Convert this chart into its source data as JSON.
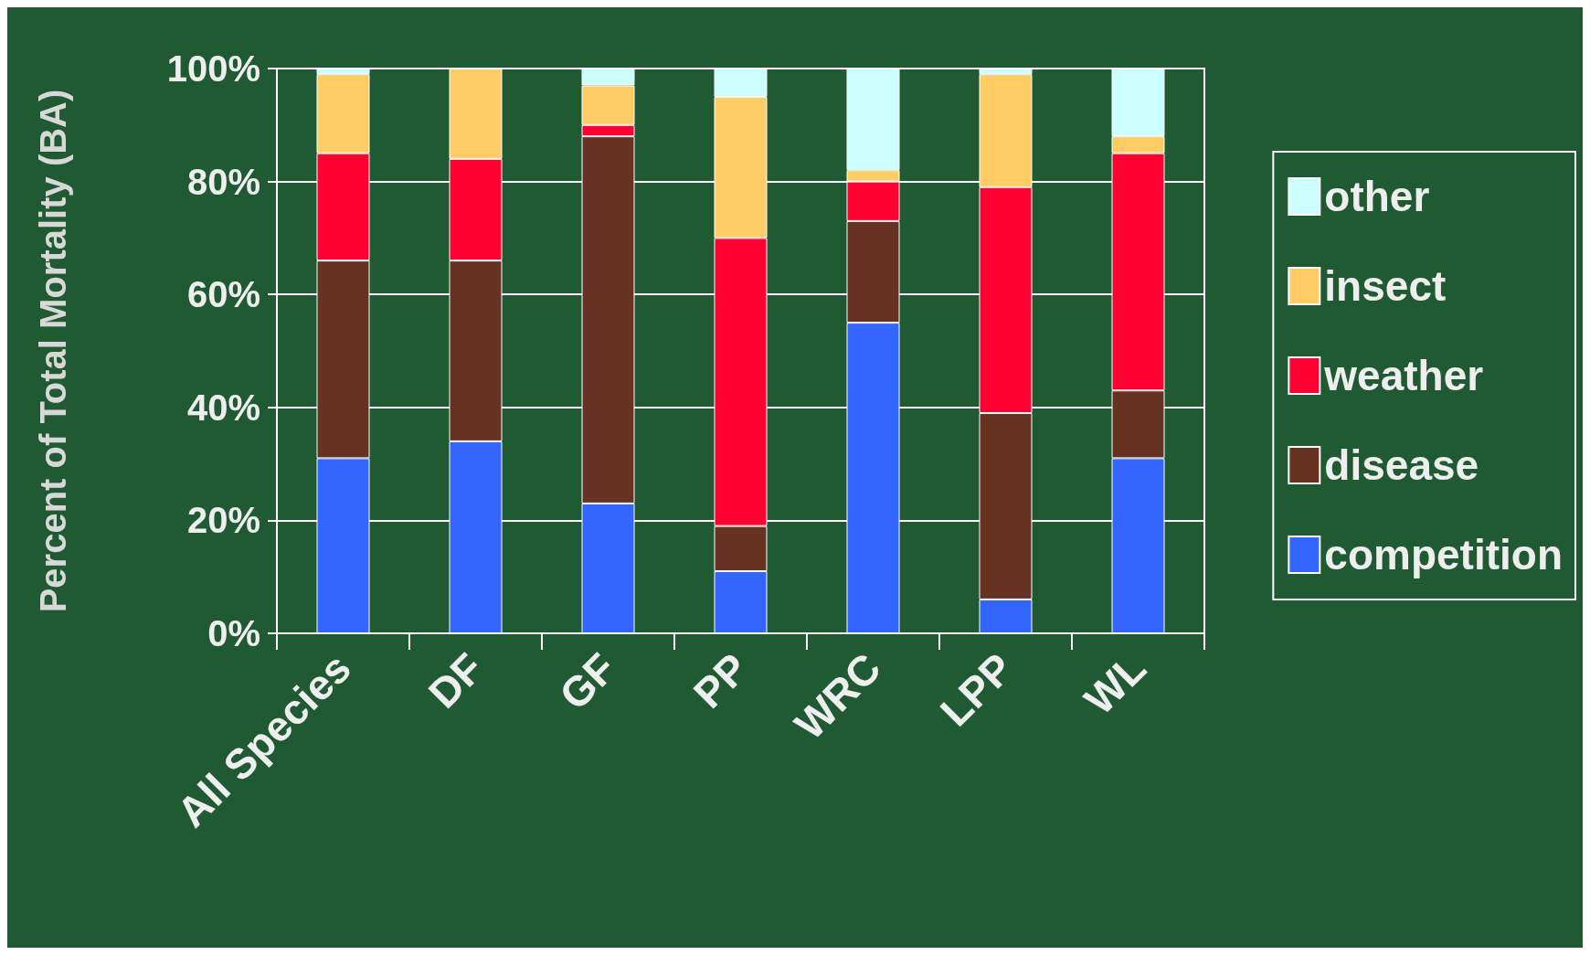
{
  "chart_data": {
    "type": "bar",
    "stacked": true,
    "ylabel": "Percent of Total Mortality (BA)",
    "categories": [
      "All Species",
      "DF",
      "GF",
      "PP",
      "WRC",
      "LPP",
      "WL"
    ],
    "series": [
      {
        "name": "competition",
        "color": "#3366ff",
        "values": [
          31,
          34,
          23,
          11,
          55,
          6,
          31
        ]
      },
      {
        "name": "disease",
        "color": "#663322",
        "values": [
          35,
          32,
          65,
          8,
          18,
          33,
          12
        ]
      },
      {
        "name": "weather",
        "color": "#ff0033",
        "values": [
          19,
          18,
          2,
          51,
          7,
          40,
          42
        ]
      },
      {
        "name": "insect",
        "color": "#ffcc66",
        "values": [
          14,
          16,
          7,
          25,
          2,
          20,
          3
        ]
      },
      {
        "name": "other",
        "color": "#ccffff",
        "values": [
          1,
          0,
          3,
          5,
          18,
          1,
          12
        ]
      }
    ],
    "ylim": [
      0,
      100
    ],
    "yticks": [
      {
        "value": 0,
        "label": "0%"
      },
      {
        "value": 20,
        "label": "20%"
      },
      {
        "value": 40,
        "label": "40%"
      },
      {
        "value": 60,
        "label": "60%"
      },
      {
        "value": 80,
        "label": "80%"
      },
      {
        "value": 100,
        "label": "100%"
      }
    ],
    "grid": "y",
    "legend": "right"
  }
}
